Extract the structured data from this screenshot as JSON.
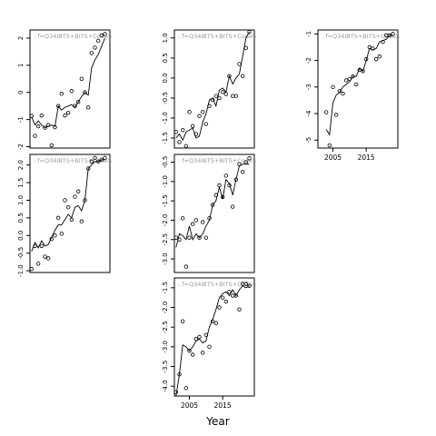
{
  "figure": {
    "xlabel": "Year",
    "background": "#ffffff",
    "line_color": "#000000",
    "point_color": "#000000",
    "panel_label_color": "#999999"
  },
  "chart_data": [
    {
      "type": "scatter",
      "label": ": f=Q34IBTS+BITS+CodeS",
      "xlim": [
        2000.5,
        2024.5
      ],
      "ylim": [
        -2.05,
        2.3
      ],
      "yticks": [
        "-2",
        "-1",
        "0",
        "1",
        "2"
      ],
      "ytick_values": [
        -2,
        -1,
        0,
        1,
        2
      ],
      "xticks": [],
      "series": [
        {
          "x": [
            2001,
            2002,
            2003,
            2004,
            2005,
            2006,
            2007,
            2008,
            2009,
            2010,
            2011,
            2012,
            2013,
            2014,
            2015,
            2016,
            2017,
            2018,
            2019,
            2020,
            2021,
            2022,
            2023
          ],
          "values": [
            -0.87,
            -1.6,
            -1.25,
            -0.85,
            -1.3,
            -1.2,
            -1.95,
            -1.28,
            -0.5,
            -0.05,
            -0.85,
            -0.75,
            0.05,
            -0.5,
            -0.35,
            0.5,
            0.0,
            -0.55,
            1.45,
            1.65,
            1.9,
            2.1,
            2.15
          ]
        },
        {
          "x": [
            2001,
            2002,
            2003,
            2004,
            2005,
            2006,
            2007,
            2008,
            2009,
            2010,
            2011,
            2012,
            2013,
            2014,
            2015,
            2016,
            2017,
            2018,
            2019,
            2020,
            2021,
            2022,
            2023
          ],
          "values": [
            -0.9,
            -1.2,
            -1.05,
            -1.2,
            -1.3,
            -1.25,
            -1.2,
            -1.25,
            -0.5,
            -0.65,
            -0.55,
            -0.5,
            -0.45,
            -0.55,
            -0.35,
            -0.15,
            0.0,
            -0.1,
            0.9,
            1.2,
            1.4,
            1.7,
            2.0
          ]
        }
      ]
    },
    {
      "type": "scatter",
      "label": ": f=Q34IBTS+BITS+CodeS",
      "xlim": [
        2000.5,
        2024.5
      ],
      "ylim": [
        -1.75,
        1.2
      ],
      "yticks": [
        "-1.5",
        "-1.0",
        "-0.5",
        "0.0",
        "0.5",
        "1.0"
      ],
      "ytick_values": [
        -1.5,
        -1.0,
        -0.5,
        0.0,
        0.5,
        1.0
      ],
      "xticks": [],
      "series": [
        {
          "x": [
            2001,
            2002,
            2003,
            2004,
            2005,
            2006,
            2007,
            2008,
            2009,
            2010,
            2011,
            2012,
            2013,
            2014,
            2015,
            2016,
            2017,
            2018,
            2019,
            2020,
            2021,
            2022,
            2023
          ],
          "values": [
            -1.35,
            -1.6,
            -1.3,
            -1.7,
            -0.85,
            -1.2,
            -1.4,
            -0.95,
            -0.85,
            -1.15,
            -0.7,
            -0.55,
            -0.45,
            -0.5,
            -0.35,
            -0.4,
            0.05,
            -0.45,
            -0.45,
            0.35,
            0.05,
            0.75,
            1.15
          ]
        },
        {
          "x": [
            2001,
            2002,
            2003,
            2004,
            2005,
            2006,
            2007,
            2008,
            2009,
            2010,
            2011,
            2012,
            2013,
            2014,
            2015,
            2016,
            2017,
            2018,
            2019,
            2020,
            2021,
            2022,
            2023
          ],
          "values": [
            -1.5,
            -1.4,
            -1.55,
            -1.35,
            -1.3,
            -1.25,
            -1.5,
            -1.45,
            -1.1,
            -0.9,
            -0.55,
            -0.5,
            -0.7,
            -0.3,
            -0.25,
            -0.35,
            0.05,
            -0.15,
            0.0,
            0.1,
            0.55,
            1.0,
            1.15
          ]
        }
      ]
    },
    {
      "type": "scatter",
      "label": ": f=Q34IBTS+BITS+CodeS",
      "xlim": [
        2000.5,
        2024.5
      ],
      "ylim": [
        -5.3,
        -0.85
      ],
      "yticks": [
        "-5",
        "-4",
        "-3",
        "-2",
        "-1"
      ],
      "ytick_values": [
        -5,
        -4,
        -3,
        -2,
        -1
      ],
      "xticks": [
        "2005",
        "2015"
      ],
      "xtick_values": [
        2005,
        2015
      ],
      "series": [
        {
          "x": [
            2003,
            2004,
            2005,
            2006,
            2007,
            2008,
            2009,
            2010,
            2011,
            2012,
            2013,
            2014,
            2015,
            2016,
            2017,
            2018,
            2019,
            2020,
            2021,
            2022,
            2023
          ],
          "values": [
            -3.95,
            -5.2,
            -3.0,
            -4.05,
            -3.15,
            -3.25,
            -2.75,
            -2.7,
            -2.6,
            -2.9,
            -2.35,
            -2.4,
            -1.95,
            -1.5,
            -1.55,
            -1.95,
            -1.85,
            -1.3,
            -1.05,
            -1.05,
            -1.0
          ]
        },
        {
          "x": [
            2003,
            2004,
            2005,
            2006,
            2007,
            2008,
            2009,
            2010,
            2011,
            2012,
            2013,
            2014,
            2015,
            2016,
            2017,
            2018,
            2019,
            2020,
            2021,
            2022,
            2023
          ],
          "values": [
            -4.6,
            -4.8,
            -3.6,
            -3.3,
            -3.2,
            -3.0,
            -2.9,
            -2.8,
            -2.6,
            -2.6,
            -2.3,
            -2.4,
            -2.0,
            -1.55,
            -1.6,
            -1.55,
            -1.3,
            -1.25,
            -1.2,
            -1.05,
            -1.05
          ]
        }
      ]
    },
    {
      "type": "scatter",
      "label": ": f=Q34IBTS+BITS+CodeS",
      "xlim": [
        2000.5,
        2024.5
      ],
      "ylim": [
        -1.05,
        2.3
      ],
      "yticks": [
        "-1.0",
        "-0.5",
        "0.0",
        "0.5",
        "1.0",
        "1.5",
        "2.0"
      ],
      "ytick_values": [
        -1.0,
        -0.5,
        0.0,
        0.5,
        1.0,
        1.5,
        2.0
      ],
      "xticks": [],
      "series": [
        {
          "x": [
            2001,
            2002,
            2003,
            2004,
            2005,
            2006,
            2007,
            2008,
            2009,
            2010,
            2011,
            2012,
            2013,
            2014,
            2015,
            2016,
            2017,
            2018,
            2019,
            2020,
            2021,
            2022,
            2023
          ],
          "values": [
            -0.95,
            -0.3,
            -0.8,
            -0.3,
            -0.6,
            -0.65,
            -0.1,
            0.0,
            0.5,
            0.05,
            1.0,
            0.8,
            0.45,
            1.1,
            1.25,
            0.4,
            1.0,
            1.9,
            2.1,
            2.2,
            2.1,
            2.15,
            2.2
          ]
        },
        {
          "x": [
            2001,
            2002,
            2003,
            2004,
            2005,
            2006,
            2007,
            2008,
            2009,
            2010,
            2011,
            2012,
            2013,
            2014,
            2015,
            2016,
            2017,
            2018,
            2019,
            2020,
            2021,
            2022,
            2023
          ],
          "values": [
            -0.45,
            -0.2,
            -0.35,
            -0.15,
            -0.3,
            -0.25,
            -0.05,
            0.15,
            0.3,
            0.3,
            0.45,
            0.6,
            0.5,
            0.8,
            0.85,
            0.7,
            1.0,
            1.9,
            2.0,
            2.1,
            2.1,
            2.15,
            2.15
          ]
        }
      ]
    },
    {
      "type": "scatter",
      "label": ": f=Q34IBTS+BITS+CodeS",
      "xlim": [
        2000.5,
        2024.5
      ],
      "ylim": [
        -3.35,
        -0.3
      ],
      "yticks": [
        "-3.0",
        "-2.5",
        "-2.0",
        "-1.5",
        "-1.0",
        "-0.5"
      ],
      "ytick_values": [
        -3.0,
        -2.5,
        -2.0,
        -1.5,
        -1.0,
        -0.5
      ],
      "xticks": [],
      "series": [
        {
          "x": [
            2001,
            2002,
            2003,
            2004,
            2005,
            2006,
            2007,
            2008,
            2009,
            2010,
            2011,
            2012,
            2013,
            2014,
            2015,
            2016,
            2017,
            2018,
            2019,
            2020,
            2021,
            2022,
            2023
          ],
          "values": [
            -2.45,
            -2.5,
            -1.95,
            -3.2,
            -2.45,
            -2.1,
            -2.0,
            -2.45,
            -2.05,
            -2.45,
            -1.95,
            -1.6,
            -1.35,
            -1.1,
            -1.4,
            -0.85,
            -1.1,
            -1.65,
            -0.95,
            -0.55,
            -0.75,
            -0.5,
            -0.4
          ]
        },
        {
          "x": [
            2001,
            2002,
            2003,
            2004,
            2005,
            2006,
            2007,
            2008,
            2009,
            2010,
            2011,
            2012,
            2013,
            2014,
            2015,
            2016,
            2017,
            2018,
            2019,
            2020,
            2021,
            2022,
            2023
          ],
          "values": [
            -2.7,
            -2.35,
            -2.4,
            -2.5,
            -2.15,
            -2.5,
            -2.35,
            -2.45,
            -2.35,
            -2.15,
            -2.0,
            -1.6,
            -1.5,
            -1.15,
            -1.45,
            -0.95,
            -1.05,
            -1.35,
            -0.95,
            -0.6,
            -0.55,
            -0.55,
            -0.55
          ]
        }
      ]
    },
    {
      "type": "scatter",
      "label": ": f=Q34IBTS+BITS+CodeS",
      "xlim": [
        2000.5,
        2024.5
      ],
      "ylim": [
        -4.25,
        -1.25
      ],
      "yticks": [
        "-4.0",
        "-3.5",
        "-3.0",
        "-2.5",
        "-2.0",
        "-1.5"
      ],
      "ytick_values": [
        -4.0,
        -3.5,
        -3.0,
        -2.5,
        -2.0,
        -1.5
      ],
      "xticks": [
        "2005",
        "2015"
      ],
      "xtick_values": [
        2005,
        2015
      ],
      "series": [
        {
          "x": [
            2001,
            2002,
            2003,
            2004,
            2005,
            2006,
            2007,
            2008,
            2009,
            2010,
            2011,
            2012,
            2013,
            2014,
            2015,
            2016,
            2017,
            2018,
            2019,
            2020,
            2021,
            2022,
            2023
          ],
          "values": [
            -4.15,
            -3.7,
            -2.35,
            -4.05,
            -3.1,
            -3.2,
            -2.8,
            -2.75,
            -3.15,
            -2.7,
            -3.0,
            -2.35,
            -2.4,
            -2.0,
            -1.75,
            -1.85,
            -1.6,
            -1.7,
            -1.7,
            -2.05,
            -1.4,
            -1.4,
            -1.45
          ]
        },
        {
          "x": [
            2001,
            2002,
            2003,
            2004,
            2005,
            2006,
            2007,
            2008,
            2009,
            2010,
            2011,
            2012,
            2013,
            2014,
            2015,
            2016,
            2017,
            2018,
            2019,
            2020,
            2021,
            2022,
            2023
          ],
          "values": [
            -4.25,
            -3.7,
            -2.95,
            -3.0,
            -3.1,
            -3.0,
            -2.85,
            -2.8,
            -2.9,
            -2.85,
            -2.5,
            -2.3,
            -2.05,
            -1.75,
            -1.65,
            -1.6,
            -1.7,
            -1.55,
            -1.7,
            -1.55,
            -1.45,
            -1.5,
            -1.45
          ]
        }
      ]
    }
  ]
}
